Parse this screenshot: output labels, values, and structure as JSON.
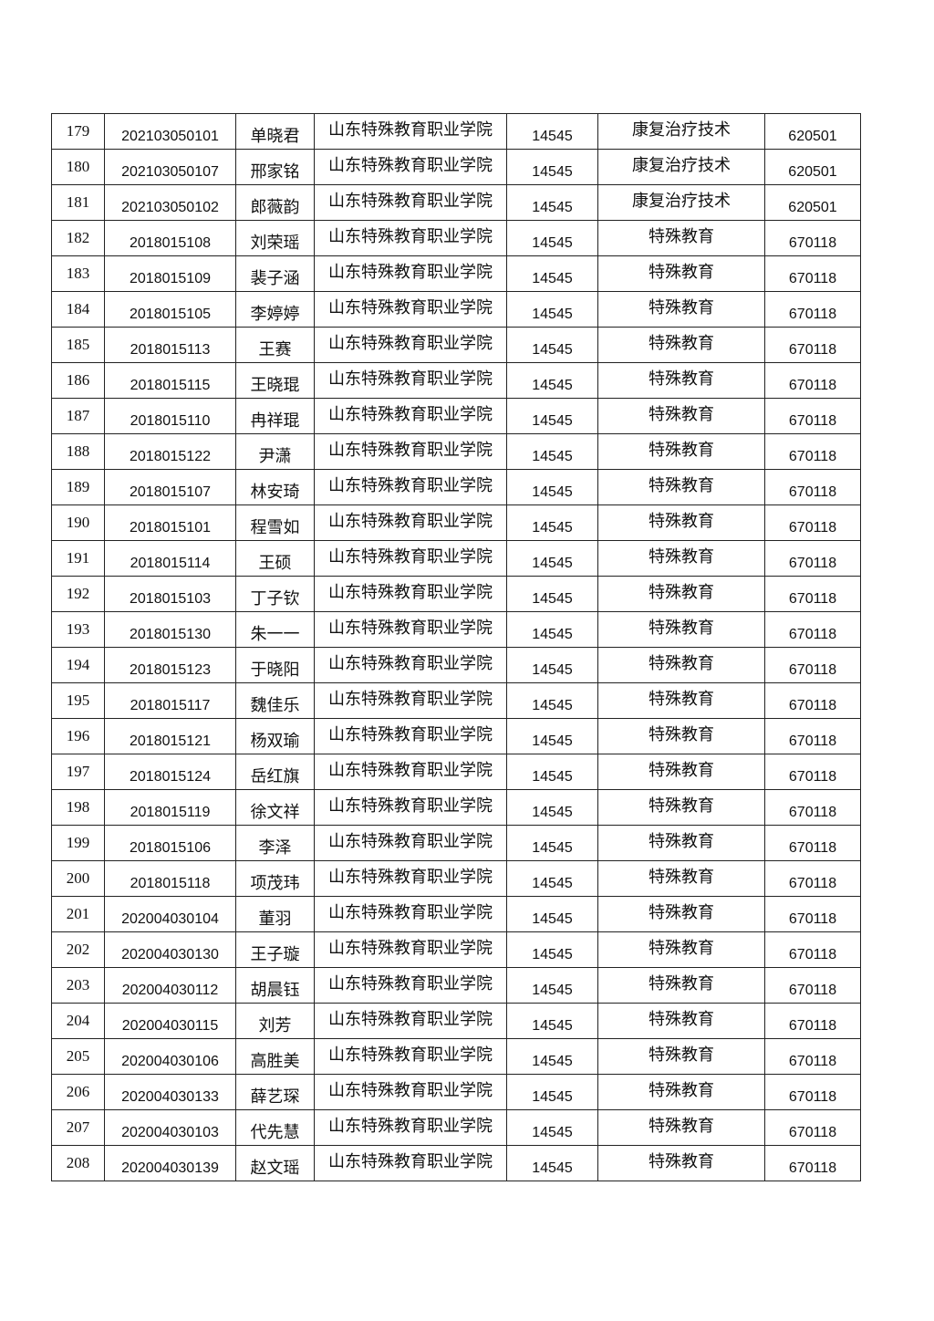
{
  "table": {
    "rows": [
      [
        "179",
        "202103050101",
        "单晓君",
        "山东特殊教育职业学院",
        "14545",
        "康复治疗技术",
        "620501"
      ],
      [
        "180",
        "202103050107",
        "邢家铭",
        "山东特殊教育职业学院",
        "14545",
        "康复治疗技术",
        "620501"
      ],
      [
        "181",
        "202103050102",
        "郎薇韵",
        "山东特殊教育职业学院",
        "14545",
        "康复治疗技术",
        "620501"
      ],
      [
        "182",
        "2018015108",
        "刘荣瑶",
        "山东特殊教育职业学院",
        "14545",
        "特殊教育",
        "670118"
      ],
      [
        "183",
        "2018015109",
        "裴子涵",
        "山东特殊教育职业学院",
        "14545",
        "特殊教育",
        "670118"
      ],
      [
        "184",
        "2018015105",
        "李婷婷",
        "山东特殊教育职业学院",
        "14545",
        "特殊教育",
        "670118"
      ],
      [
        "185",
        "2018015113",
        "王赛",
        "山东特殊教育职业学院",
        "14545",
        "特殊教育",
        "670118"
      ],
      [
        "186",
        "2018015115",
        "王晓琨",
        "山东特殊教育职业学院",
        "14545",
        "特殊教育",
        "670118"
      ],
      [
        "187",
        "2018015110",
        "冉祥琨",
        "山东特殊教育职业学院",
        "14545",
        "特殊教育",
        "670118"
      ],
      [
        "188",
        "2018015122",
        "尹潇",
        "山东特殊教育职业学院",
        "14545",
        "特殊教育",
        "670118"
      ],
      [
        "189",
        "2018015107",
        "林安琦",
        "山东特殊教育职业学院",
        "14545",
        "特殊教育",
        "670118"
      ],
      [
        "190",
        "2018015101",
        "程雪如",
        "山东特殊教育职业学院",
        "14545",
        "特殊教育",
        "670118"
      ],
      [
        "191",
        "2018015114",
        "王硕",
        "山东特殊教育职业学院",
        "14545",
        "特殊教育",
        "670118"
      ],
      [
        "192",
        "2018015103",
        "丁子钦",
        "山东特殊教育职业学院",
        "14545",
        "特殊教育",
        "670118"
      ],
      [
        "193",
        "2018015130",
        "朱一一",
        "山东特殊教育职业学院",
        "14545",
        "特殊教育",
        "670118"
      ],
      [
        "194",
        "2018015123",
        "于晓阳",
        "山东特殊教育职业学院",
        "14545",
        "特殊教育",
        "670118"
      ],
      [
        "195",
        "2018015117",
        "魏佳乐",
        "山东特殊教育职业学院",
        "14545",
        "特殊教育",
        "670118"
      ],
      [
        "196",
        "2018015121",
        "杨双瑜",
        "山东特殊教育职业学院",
        "14545",
        "特殊教育",
        "670118"
      ],
      [
        "197",
        "2018015124",
        "岳红旗",
        "山东特殊教育职业学院",
        "14545",
        "特殊教育",
        "670118"
      ],
      [
        "198",
        "2018015119",
        "徐文祥",
        "山东特殊教育职业学院",
        "14545",
        "特殊教育",
        "670118"
      ],
      [
        "199",
        "2018015106",
        "李泽",
        "山东特殊教育职业学院",
        "14545",
        "特殊教育",
        "670118"
      ],
      [
        "200",
        "2018015118",
        "项茂玮",
        "山东特殊教育职业学院",
        "14545",
        "特殊教育",
        "670118"
      ],
      [
        "201",
        "202004030104",
        "董羽",
        "山东特殊教育职业学院",
        "14545",
        "特殊教育",
        "670118"
      ],
      [
        "202",
        "202004030130",
        "王子璇",
        "山东特殊教育职业学院",
        "14545",
        "特殊教育",
        "670118"
      ],
      [
        "203",
        "202004030112",
        "胡晨钰",
        "山东特殊教育职业学院",
        "14545",
        "特殊教育",
        "670118"
      ],
      [
        "204",
        "202004030115",
        "刘芳",
        "山东特殊教育职业学院",
        "14545",
        "特殊教育",
        "670118"
      ],
      [
        "205",
        "202004030106",
        "高胜美",
        "山东特殊教育职业学院",
        "14545",
        "特殊教育",
        "670118"
      ],
      [
        "206",
        "202004030133",
        "薛艺琛",
        "山东特殊教育职业学院",
        "14545",
        "特殊教育",
        "670118"
      ],
      [
        "207",
        "202004030103",
        "代先慧",
        "山东特殊教育职业学院",
        "14545",
        "特殊教育",
        "670118"
      ],
      [
        "208",
        "202004030139",
        "赵文瑶",
        "山东特殊教育职业学院",
        "14545",
        "特殊教育",
        "670118"
      ]
    ]
  }
}
